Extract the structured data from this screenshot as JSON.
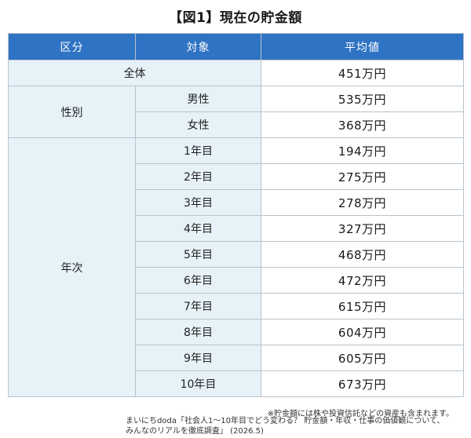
{
  "title": "【図1】現在の貯金額",
  "table": {
    "headers": {
      "category": "区分",
      "target": "対象",
      "average": "平均値"
    },
    "overall": {
      "label": "全体",
      "value": "451万円"
    },
    "gender": {
      "label": "性別",
      "rows": [
        {
          "target": "男性",
          "value": "535万円"
        },
        {
          "target": "女性",
          "value": "368万円"
        }
      ]
    },
    "year": {
      "label": "年次",
      "rows": [
        {
          "target": "1年目",
          "value": "194万円"
        },
        {
          "target": "2年目",
          "value": "275万円"
        },
        {
          "target": "3年目",
          "value": "278万円"
        },
        {
          "target": "4年目",
          "value": "327万円"
        },
        {
          "target": "5年目",
          "value": "468万円"
        },
        {
          "target": "6年目",
          "value": "472万円"
        },
        {
          "target": "7年目",
          "value": "615万円"
        },
        {
          "target": "8年目",
          "value": "604万円"
        },
        {
          "target": "9年目",
          "value": "605万円"
        },
        {
          "target": "10年目",
          "value": "673万円"
        }
      ]
    }
  },
  "footnote": "※貯金額には株や投資信託などの資産も含まれます。",
  "source": {
    "line1": "まいにちdoda「社会人1～10年目でどう変わる？ 貯金額・年収・仕事の価値観について、",
    "line2": "みんなのリアルを徹底調査」 (2026.5)"
  },
  "colors": {
    "header_bg": "#2f73c4",
    "label_bg": "#e6f2f8",
    "border": "#b8c4cc"
  }
}
